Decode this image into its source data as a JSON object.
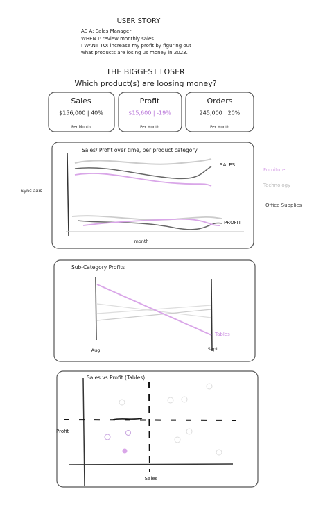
{
  "user_story": {
    "title": "USER STORY",
    "lines": [
      "AS A: Sales Manager",
      "WHEN I: review monthly sales",
      "I WANT TO: increase my profit by figuring out",
      "what products are losing us money in 2023."
    ]
  },
  "header": {
    "title": "THE BIGGEST LOSER",
    "subtitle": "Which product(s) are loosing money?"
  },
  "kpis": [
    {
      "label": "Sales",
      "value": "$156,000 | 40%",
      "period": "Per Month"
    },
    {
      "label": "Profit",
      "value": "$15,600 | -19%",
      "period": "Per Month"
    },
    {
      "label": "Orders",
      "value": "245,000 | 20%",
      "period": "Per Month"
    }
  ],
  "time_chart": {
    "title": "Sales/ Profit over time, per product category",
    "sales_label": "SALES",
    "profit_label": "PROFIT",
    "x_label": "month",
    "side_note": "Sync axis",
    "legend": [
      "Furniture",
      "Technology",
      "Office Supplies"
    ]
  },
  "subcategory_chart": {
    "title": "Sub-Category Profits",
    "x_labels": [
      "Aug",
      "Sept"
    ],
    "highlight": "Tables"
  },
  "scatter_chart": {
    "title": "Sales vs Profit (Tables)",
    "y_label": "Profit",
    "x_label": "Sales"
  }
}
